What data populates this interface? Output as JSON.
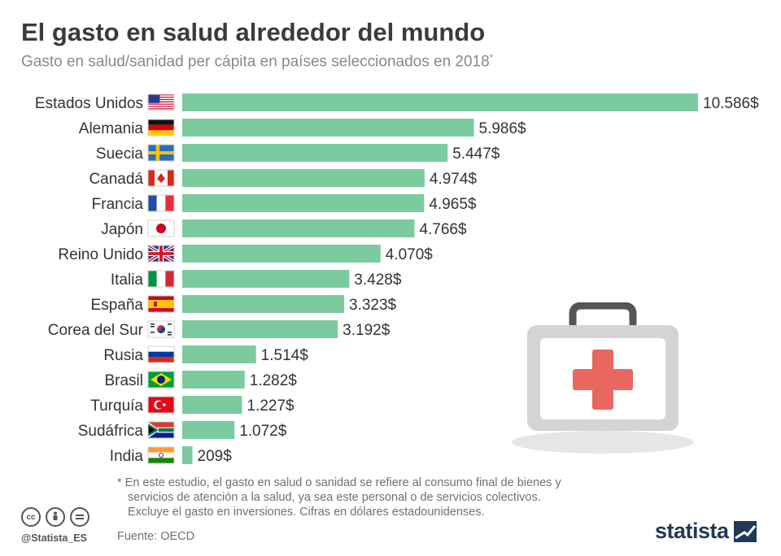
{
  "header": {
    "title": "El gasto en salud alrededor del mundo",
    "subtitle": "Gasto en salud/sanidad per cápita en países seleccionados en 2018",
    "subtitle_marker": "*"
  },
  "chart_data": {
    "type": "bar",
    "orientation": "horizontal",
    "title": "El gasto en salud alrededor del mundo",
    "categories": [
      "Estados Unidos",
      "Alemania",
      "Suecia",
      "Canadá",
      "Francia",
      "Japón",
      "Reino Unido",
      "Italia",
      "España",
      "Corea del Sur",
      "Rusia",
      "Brasil",
      "Turquía",
      "Sudáfrica",
      "India"
    ],
    "values": [
      10586,
      5986,
      5447,
      4974,
      4965,
      4766,
      4070,
      3428,
      3323,
      3192,
      1514,
      1282,
      1227,
      1072,
      209
    ],
    "value_labels": [
      "10.586$",
      "5.986$",
      "5.447$",
      "4.974$",
      "4.965$",
      "4.766$",
      "4.070$",
      "3.428$",
      "3.323$",
      "3.192$",
      "1.514$",
      "1.282$",
      "1.227$",
      "1.072$",
      "209$"
    ],
    "flags": [
      "us-flag-icon",
      "de-flag-icon",
      "se-flag-icon",
      "ca-flag-icon",
      "fr-flag-icon",
      "jp-flag-icon",
      "gb-flag-icon",
      "it-flag-icon",
      "es-flag-icon",
      "kr-flag-icon",
      "ru-flag-icon",
      "br-flag-icon",
      "tr-flag-icon",
      "za-flag-icon",
      "in-flag-icon"
    ],
    "bar_color": "#7ccb9e",
    "grid": false
  },
  "footnote": {
    "line1": "* En este estudio, el gasto en salud o sanidad se refiere al consumo final de bienes y",
    "line2": "servicios de atención a la salud, ya sea este personal o de servicios colectivos.",
    "line3": "Excluye el gasto en inversiones. Cifras en dólares estadounidenses."
  },
  "source": "Fuente: OECD",
  "license": {
    "handle": "@Statista_ES",
    "icons": [
      "cc-icon",
      "by-icon",
      "nd-icon"
    ]
  },
  "brand": {
    "name": "statista",
    "color": "#1f3a55"
  },
  "illustration": {
    "icon": "first-aid-kit-icon",
    "cross_color": "#e8685f"
  }
}
